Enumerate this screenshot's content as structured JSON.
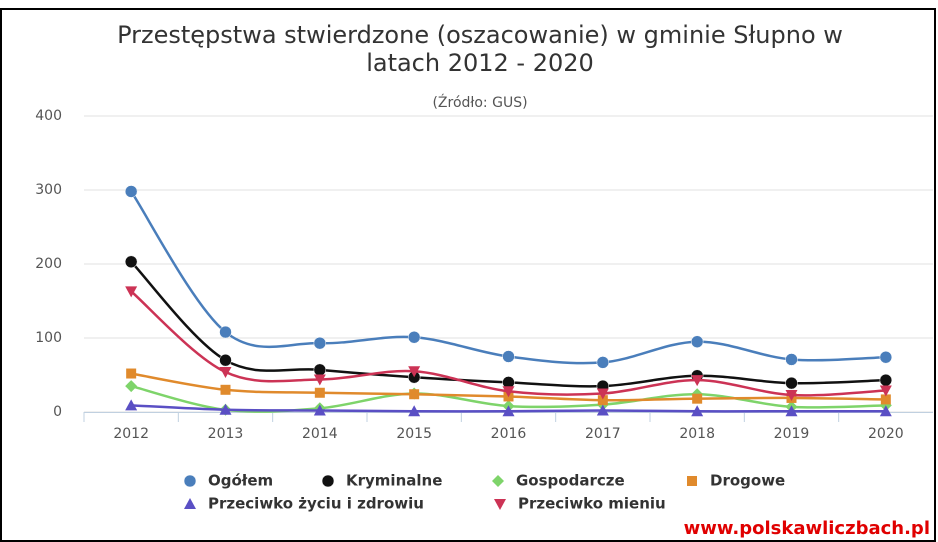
{
  "chart_data": {
    "type": "line",
    "title": [
      "Przestępstwa stwierdzone (oszacowanie) w gminie Słupno w",
      "latach 2012 - 2020"
    ],
    "subtitle": "(Źródło: GUS)",
    "categories": [
      "2012",
      "2013",
      "2014",
      "2015",
      "2016",
      "2017",
      "2018",
      "2019",
      "2020"
    ],
    "series": [
      {
        "name": "Ogółem",
        "color": "#4a7ebb",
        "marker": "circle",
        "values": [
          298,
          108,
          93,
          101,
          75,
          67,
          95,
          71,
          74
        ]
      },
      {
        "name": "Kryminalne",
        "color": "#111111",
        "marker": "circle",
        "values": [
          203,
          70,
          57,
          47,
          40,
          35,
          49,
          39,
          43
        ]
      },
      {
        "name": "Gospodarcze",
        "color": "#7ed46a",
        "marker": "diamond",
        "values": [
          35,
          3,
          5,
          25,
          8,
          10,
          24,
          7,
          9
        ]
      },
      {
        "name": "Drogowe",
        "color": "#e08a2c",
        "marker": "square",
        "values": [
          52,
          30,
          26,
          24,
          21,
          16,
          18,
          19,
          17
        ]
      },
      {
        "name": "Przeciwko życiu i zdrowiu",
        "color": "#5a4fc4",
        "marker": "triangle",
        "values": [
          9,
          3,
          2,
          1,
          1,
          2,
          1,
          1,
          1
        ]
      },
      {
        "name": "Przeciwko mieniu",
        "color": "#cc3355",
        "marker": "triangle-down",
        "values": [
          163,
          54,
          44,
          55,
          28,
          25,
          43,
          23,
          29
        ]
      }
    ],
    "ylim": [
      0,
      400
    ],
    "yticks": [
      0,
      100,
      200,
      300,
      400
    ],
    "grid": true,
    "legend": "bottom",
    "watermark": "www.polskawliczbach.pl"
  }
}
